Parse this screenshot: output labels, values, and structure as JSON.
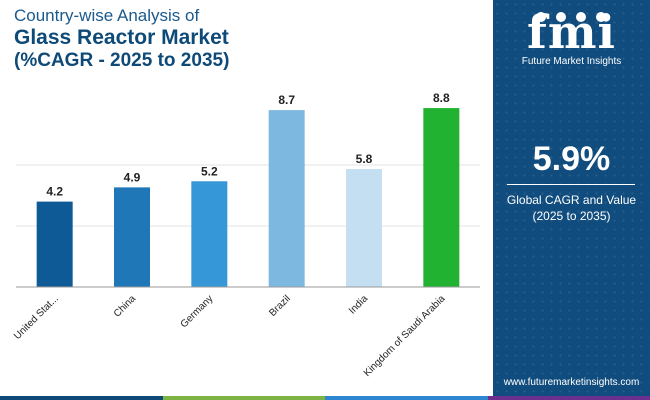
{
  "title": {
    "line1": "Country-wise Analysis of",
    "line2": "Glass Reactor Market",
    "line3": "(%CAGR - 2025 to 2035)"
  },
  "sidebar": {
    "logo_text": "fmi",
    "logo_subtitle": "Future Market Insights",
    "cagr_value": "5.9%",
    "cagr_label_line1": "Global CAGR and Value",
    "cagr_label_line2": "(2025 to 2035)",
    "website": "www.futuremarketinsights.com",
    "background_color": "#104c7d"
  },
  "bottom_strip_colors": [
    "#0e4a78",
    "#7cb342",
    "#2e86d1",
    "#6a2f8f"
  ],
  "chart_data": {
    "type": "bar",
    "categories": [
      "United Stat...",
      "China",
      "Germany",
      "Brazil",
      "India",
      "Kingdom of Saudi Arabia"
    ],
    "values": [
      4.2,
      4.9,
      5.2,
      8.7,
      5.8,
      8.8
    ],
    "value_labels": [
      "4.2",
      "4.9",
      "5.2",
      "8.7",
      "5.8",
      "8.8"
    ],
    "colors": [
      "#0e5a96",
      "#1f77b8",
      "#3597d8",
      "#7db8e0",
      "#c4dff2",
      "#22b232"
    ],
    "ylim": [
      0,
      9
    ],
    "grid": "horizontal",
    "xlabel": "",
    "ylabel": ""
  }
}
